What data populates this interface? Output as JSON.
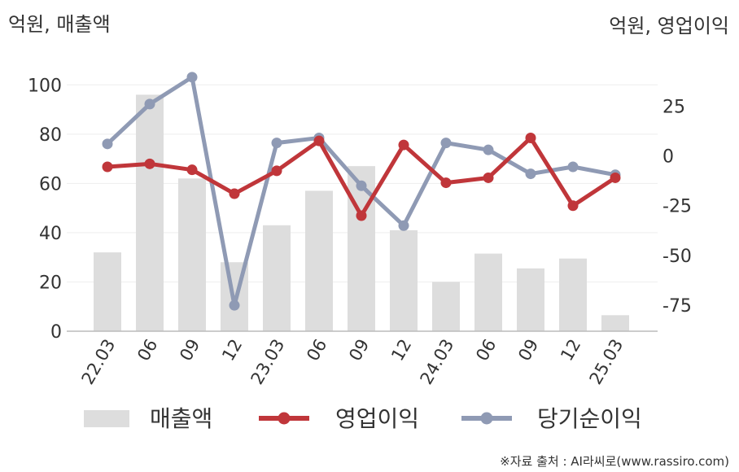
{
  "chart_data": {
    "type": "bar+line",
    "left_axis_title": "억원, 매출액",
    "right_axis_title": "억원, 영업이익",
    "categories": [
      "22.03",
      "06",
      "09",
      "12",
      "23.03",
      "06",
      "09",
      "12",
      "24.03",
      "06",
      "09",
      "12",
      "25.03"
    ],
    "left_ylim": [
      0,
      110
    ],
    "left_ticks": [
      "0",
      "20",
      "40",
      "60",
      "80",
      "100"
    ],
    "left_tick_values": [
      0,
      20,
      40,
      60,
      80,
      100
    ],
    "right_ylim": [
      -88,
      48
    ],
    "right_ticks": [
      "25",
      "0",
      "-25",
      "-50",
      "-75"
    ],
    "right_tick_values": [
      25,
      0,
      -25,
      -50,
      -75
    ],
    "series": [
      {
        "name": "매출액",
        "kind": "bar",
        "axis": "left",
        "color": "#dddddd",
        "values": [
          32,
          96,
          62,
          28,
          43,
          57,
          67,
          41,
          20,
          31.5,
          25.5,
          29.5,
          6.5
        ]
      },
      {
        "name": "영업이익",
        "kind": "line",
        "axis": "right",
        "color": "#c0363a",
        "values": [
          -5.5,
          -4,
          -7,
          -19,
          -7.5,
          7.5,
          -30,
          5.5,
          -13.5,
          -11,
          9,
          -25,
          -11
        ]
      },
      {
        "name": "당기순이익",
        "kind": "line",
        "axis": "right",
        "color": "#8f9ab4",
        "values": [
          6,
          26,
          39.5,
          -75,
          6.5,
          9,
          -15,
          -35,
          6.5,
          3,
          -9,
          -5.5,
          -9.5
        ]
      }
    ],
    "legend_position": "bottom",
    "grid": true
  },
  "source_note": "※자료 출처 : AI라씨로(www.rassiro.com)"
}
